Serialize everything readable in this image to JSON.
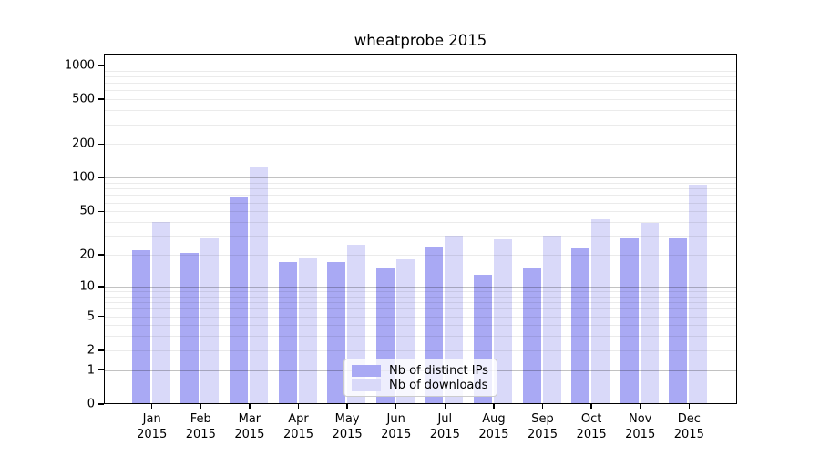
{
  "title": "wheatprobe 2015",
  "chart_data": {
    "type": "bar",
    "title": "wheatprobe 2015",
    "xlabel": "",
    "ylabel": "",
    "scale": "log1p",
    "grid": "on",
    "legend_position": "lower center",
    "categories": [
      "Jan",
      "Feb",
      "Mar",
      "Apr",
      "May",
      "Jun",
      "Jul",
      "Aug",
      "Sep",
      "Oct",
      "Nov",
      "Dec"
    ],
    "year": "2015",
    "yticks": [
      0,
      1,
      2,
      5,
      10,
      20,
      50,
      100,
      200,
      500,
      1000
    ],
    "ylim": [
      0,
      1270
    ],
    "series": [
      {
        "name": "Nb of distinct IPs",
        "color": "#a9a9f4",
        "values": [
          22,
          21,
          67,
          17,
          17,
          15,
          24,
          13,
          15,
          23,
          29,
          29
        ]
      },
      {
        "name": "Nb of downloads",
        "color": "#d9d9f9",
        "values": [
          40,
          29,
          125,
          19,
          25,
          18,
          30,
          28,
          30,
          42,
          39,
          86
        ]
      }
    ]
  }
}
